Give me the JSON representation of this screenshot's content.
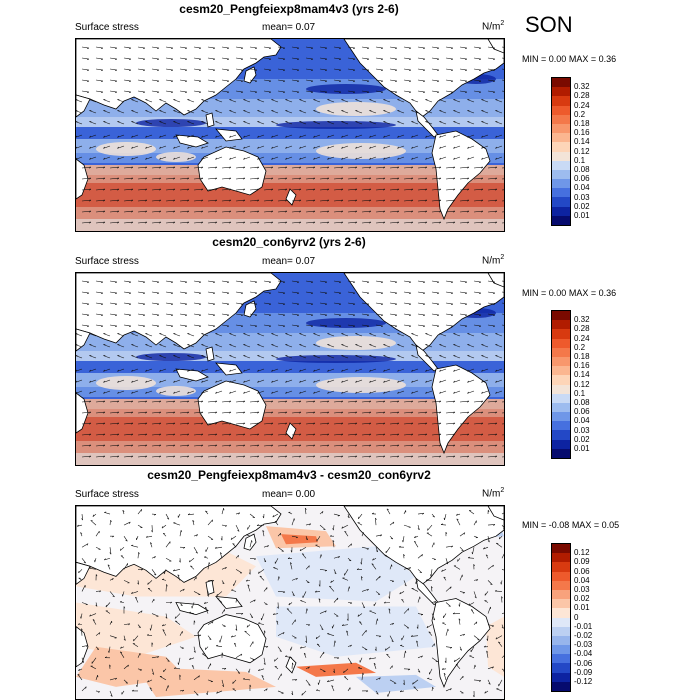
{
  "season": "SON",
  "panels": [
    {
      "title": "cesm20_Pengfeiexp8mam4v3 (yrs 2-6)",
      "left_label": "Surface stress",
      "mean_label": "mean=",
      "mean_value": "0.07",
      "units_base": "N/m",
      "units_exp": "2",
      "min_label": "MIN =",
      "min_value": "0.00",
      "max_label": "MAX =",
      "max_value": "0.36",
      "levels": [
        "0.32",
        "0.28",
        "0.24",
        "0.2",
        "0.18",
        "0.16",
        "0.14",
        "0.12",
        "0.1",
        "0.08",
        "0.06",
        "0.04",
        "0.03",
        "0.02",
        "0.01"
      ],
      "colors": [
        "#7a0a00",
        "#b11c00",
        "#d83a10",
        "#ee5a2c",
        "#f4784a",
        "#f8976c",
        "#fbb690",
        "#fdd5b8",
        "#f3e4d8",
        "#c9daf5",
        "#9dbcef",
        "#6f97e8",
        "#4670df",
        "#2348c6",
        "#0d23a1",
        "#060b6e"
      ]
    },
    {
      "title": "cesm20_con6yrv2 (yrs 2-6)",
      "left_label": "Surface stress",
      "mean_label": "mean=",
      "mean_value": "0.07",
      "units_base": "N/m",
      "units_exp": "2",
      "min_label": "MIN =",
      "min_value": "0.00",
      "max_label": "MAX =",
      "max_value": "0.36",
      "levels": [
        "0.32",
        "0.28",
        "0.24",
        "0.2",
        "0.18",
        "0.16",
        "0.14",
        "0.12",
        "0.1",
        "0.08",
        "0.06",
        "0.04",
        "0.03",
        "0.02",
        "0.01"
      ],
      "colors": [
        "#7a0a00",
        "#b11c00",
        "#d83a10",
        "#ee5a2c",
        "#f4784a",
        "#f8976c",
        "#fbb690",
        "#fdd5b8",
        "#f3e4d8",
        "#c9daf5",
        "#9dbcef",
        "#6f97e8",
        "#4670df",
        "#2348c6",
        "#0d23a1",
        "#060b6e"
      ]
    },
    {
      "title": "cesm20_Pengfeiexp8mam4v3 - cesm20_con6yrv2",
      "left_label": "Surface stress",
      "mean_label": "mean=",
      "mean_value": "0.00",
      "units_base": "N/m",
      "units_exp": "2",
      "min_label": "MIN =",
      "min_value": "-0.08",
      "max_label": "MAX =",
      "max_value": "0.05",
      "levels": [
        "0.12",
        "0.09",
        "0.06",
        "0.04",
        "0.03",
        "0.02",
        "0.01",
        "0",
        "-0.01",
        "-0.02",
        "-0.03",
        "-0.04",
        "-0.06",
        "-0.09",
        "-0.12"
      ],
      "colors": [
        "#7a0a00",
        "#b11c00",
        "#d83a10",
        "#ee5a2c",
        "#f4784a",
        "#f8a27c",
        "#fbc6a8",
        "#fde6d6",
        "#dfe8f8",
        "#bcd0f2",
        "#97b5ec",
        "#6f97e8",
        "#4670df",
        "#2348c6",
        "#0d23a1",
        "#060b6e"
      ]
    }
  ]
}
